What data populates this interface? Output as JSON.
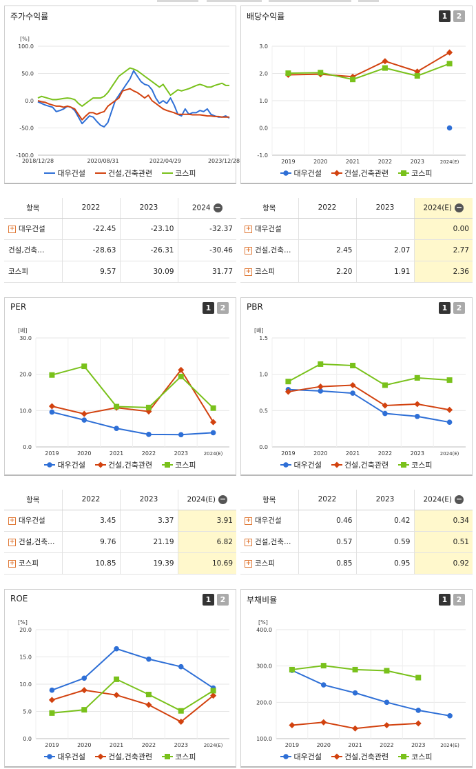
{
  "legend": {
    "daewoo": "대우건설",
    "industry": "건설,건축관련",
    "kospi": "코스피"
  },
  "colors": {
    "daewoo": "#2e6fd6",
    "industry": "#d2420f",
    "kospi": "#79c11b"
  },
  "tabs": {
    "one": "1",
    "two": "2"
  },
  "table_item_header": "항목",
  "row_names": {
    "daewoo": "대우건설",
    "industry": "건설,건축…",
    "kospi": "코스피"
  },
  "chart_data": [
    {
      "id": "stock",
      "type": "line",
      "title": "주가수익률",
      "unit": "[%]",
      "ylim": [
        -100,
        100
      ],
      "yticks": [
        "100.0",
        "50.0",
        "0.0",
        "-50.0",
        "-100.0"
      ],
      "xticks": [
        "2018/12/28",
        "2020/08/31",
        "2022/04/29",
        "2023/12/28"
      ],
      "grid": true,
      "legend_position": "bottom",
      "series": [
        {
          "name": "대우건설",
          "key": "daewoo",
          "values": [
            -2,
            -5,
            -8,
            -10,
            -12,
            -20,
            -18,
            -15,
            -10,
            -12,
            -18,
            -30,
            -42,
            -35,
            -28,
            -30,
            -38,
            -45,
            -48,
            -40,
            -20,
            0,
            10,
            20,
            30,
            40,
            55,
            45,
            35,
            30,
            28,
            20,
            5,
            -5,
            0,
            -5,
            5,
            -8,
            -25,
            -28,
            -15,
            -25,
            -22,
            -22,
            -18,
            -20,
            -15,
            -25,
            -28,
            -30,
            -30,
            -28,
            -32
          ]
        },
        {
          "name": "건설,건축관련",
          "key": "industry",
          "values": [
            0,
            -2,
            -3,
            -6,
            -8,
            -10,
            -10,
            -12,
            -10,
            -12,
            -15,
            -25,
            -35,
            -28,
            -22,
            -22,
            -25,
            -22,
            -20,
            -10,
            -5,
            0,
            5,
            18,
            20,
            22,
            18,
            15,
            10,
            5,
            10,
            0,
            -5,
            -10,
            -15,
            -18,
            -20,
            -22,
            -25,
            -25,
            -25,
            -25,
            -26,
            -26,
            -26,
            -27,
            -28,
            -28,
            -29,
            -29,
            -30,
            -30,
            -30
          ]
        },
        {
          "name": "코스피",
          "key": "kospi",
          "values": [
            5,
            8,
            6,
            4,
            2,
            2,
            3,
            4,
            5,
            4,
            2,
            -5,
            -10,
            -5,
            0,
            5,
            5,
            5,
            8,
            15,
            25,
            35,
            45,
            50,
            55,
            60,
            58,
            55,
            50,
            45,
            40,
            35,
            30,
            25,
            30,
            20,
            10,
            15,
            20,
            18,
            20,
            22,
            25,
            28,
            30,
            28,
            25,
            25,
            28,
            30,
            32,
            28,
            28
          ]
        }
      ]
    },
    {
      "id": "dividend",
      "type": "line",
      "title": "배당수익률",
      "unit": "",
      "categories": [
        "2019",
        "2020",
        "2021",
        "2022",
        "2023",
        "2024(E)"
      ],
      "ylim": [
        -1,
        3
      ],
      "yticks": [
        "3.0",
        "2.0",
        "1.0",
        "0.0",
        "-1.0"
      ],
      "grid": true,
      "legend_position": "bottom",
      "series": [
        {
          "name": "대우건설",
          "key": "daewoo",
          "values": [
            null,
            null,
            null,
            null,
            null,
            0.0
          ]
        },
        {
          "name": "건설,건축관련",
          "key": "industry",
          "values": [
            1.95,
            1.97,
            1.88,
            2.45,
            2.07,
            2.77
          ]
        },
        {
          "name": "코스피",
          "key": "kospi",
          "values": [
            2.01,
            2.03,
            1.78,
            2.2,
            1.91,
            2.36
          ]
        }
      ]
    },
    {
      "id": "per",
      "type": "line",
      "title": "PER",
      "unit": "[배]",
      "categories": [
        "2019",
        "2020",
        "2021",
        "2022",
        "2023",
        "2024(E)"
      ],
      "ylim": [
        0,
        30
      ],
      "yticks": [
        "30.0",
        "20.0",
        "10.0",
        "0.0"
      ],
      "grid": true,
      "legend_position": "bottom",
      "series": [
        {
          "name": "대우건설",
          "key": "daewoo",
          "values": [
            9.6,
            7.4,
            5.1,
            3.45,
            3.37,
            3.91
          ]
        },
        {
          "name": "건설,건축관련",
          "key": "industry",
          "values": [
            11.2,
            9.1,
            10.8,
            9.76,
            21.19,
            6.82
          ]
        },
        {
          "name": "코스피",
          "key": "kospi",
          "values": [
            19.8,
            22.2,
            11.1,
            10.85,
            19.39,
            10.69
          ]
        }
      ]
    },
    {
      "id": "pbr",
      "type": "line",
      "title": "PBR",
      "unit": "[배]",
      "categories": [
        "2019",
        "2020",
        "2021",
        "2022",
        "2023",
        "2024(E)"
      ],
      "ylim": [
        0,
        1.5
      ],
      "yticks": [
        "1.5",
        "1.0",
        "0.5",
        "0.0"
      ],
      "grid": true,
      "legend_position": "bottom",
      "series": [
        {
          "name": "대우건설",
          "key": "daewoo",
          "values": [
            0.79,
            0.77,
            0.74,
            0.46,
            0.42,
            0.34
          ]
        },
        {
          "name": "건설,건축관련",
          "key": "industry",
          "values": [
            0.76,
            0.83,
            0.85,
            0.57,
            0.59,
            0.51
          ]
        },
        {
          "name": "코스피",
          "key": "kospi",
          "values": [
            0.9,
            1.14,
            1.12,
            0.85,
            0.95,
            0.92
          ]
        }
      ]
    },
    {
      "id": "roe",
      "type": "line",
      "title": "ROE",
      "unit": "[%]",
      "categories": [
        "2019",
        "2020",
        "2021",
        "2022",
        "2023",
        "2024(E)"
      ],
      "ylim": [
        0,
        20
      ],
      "yticks": [
        "20.0",
        "15.0",
        "10.0",
        "5.0",
        "0.0"
      ],
      "grid": true,
      "legend_position": "bottom",
      "series": [
        {
          "name": "대우건설",
          "key": "daewoo",
          "values": [
            8.9,
            11.1,
            16.5,
            14.6,
            13.2,
            9.3
          ]
        },
        {
          "name": "건설,건축관련",
          "key": "industry",
          "values": [
            7.1,
            8.9,
            8.0,
            6.2,
            3.1,
            7.9
          ]
        },
        {
          "name": "코스피",
          "key": "kospi",
          "values": [
            4.7,
            5.3,
            10.9,
            8.1,
            5.1,
            8.8
          ]
        }
      ]
    },
    {
      "id": "debt",
      "type": "line",
      "title": "부채비율",
      "unit": "[%]",
      "categories": [
        "2019",
        "2020",
        "2021",
        "2022",
        "2023",
        "2024(E)"
      ],
      "ylim": [
        100,
        400
      ],
      "yticks": [
        "400.0",
        "300.0",
        "200.0",
        "100.0"
      ],
      "grid": true,
      "legend_position": "bottom",
      "series": [
        {
          "name": "대우건설",
          "key": "daewoo",
          "values": [
            288,
            248,
            226,
            200,
            178,
            163
          ]
        },
        {
          "name": "건설,건축관련",
          "key": "industry",
          "values": [
            137,
            145,
            128,
            137,
            142,
            null
          ]
        },
        {
          "name": "코스피",
          "key": "kospi",
          "values": [
            290,
            301,
            290,
            287,
            268,
            null
          ]
        }
      ]
    }
  ],
  "tables": {
    "stock": {
      "headers": [
        "2022",
        "2023",
        "2024"
      ],
      "rows": [
        {
          "name": "대우건설",
          "plus": true,
          "values": [
            "-22.45",
            "-23.10",
            "-32.37"
          ]
        },
        {
          "name": "건설,건축…",
          "plus": false,
          "values": [
            "-28.63",
            "-26.31",
            "-30.46"
          ]
        },
        {
          "name": "코스피",
          "plus": false,
          "values": [
            "9.57",
            "30.09",
            "31.77"
          ]
        }
      ]
    },
    "dividend": {
      "headers": [
        "2022",
        "2023",
        "2024(E)"
      ],
      "rows": [
        {
          "name": "대우건설",
          "plus": true,
          "values": [
            "",
            "",
            "0.00"
          ]
        },
        {
          "name": "건설,건축…",
          "plus": true,
          "values": [
            "2.45",
            "2.07",
            "2.77"
          ]
        },
        {
          "name": "코스피",
          "plus": true,
          "values": [
            "2.20",
            "1.91",
            "2.36"
          ]
        }
      ]
    },
    "per": {
      "headers": [
        "2022",
        "2023",
        "2024(E)"
      ],
      "rows": [
        {
          "name": "대우건설",
          "plus": true,
          "values": [
            "3.45",
            "3.37",
            "3.91"
          ]
        },
        {
          "name": "건설,건축…",
          "plus": true,
          "values": [
            "9.76",
            "21.19",
            "6.82"
          ]
        },
        {
          "name": "코스피",
          "plus": true,
          "values": [
            "10.85",
            "19.39",
            "10.69"
          ]
        }
      ]
    },
    "pbr": {
      "headers": [
        "2022",
        "2023",
        "2024(E)"
      ],
      "rows": [
        {
          "name": "대우건설",
          "plus": true,
          "values": [
            "0.46",
            "0.42",
            "0.34"
          ]
        },
        {
          "name": "건설,건축…",
          "plus": true,
          "values": [
            "0.57",
            "0.59",
            "0.51"
          ]
        },
        {
          "name": "코스피",
          "plus": true,
          "values": [
            "0.85",
            "0.95",
            "0.92"
          ]
        }
      ]
    }
  }
}
